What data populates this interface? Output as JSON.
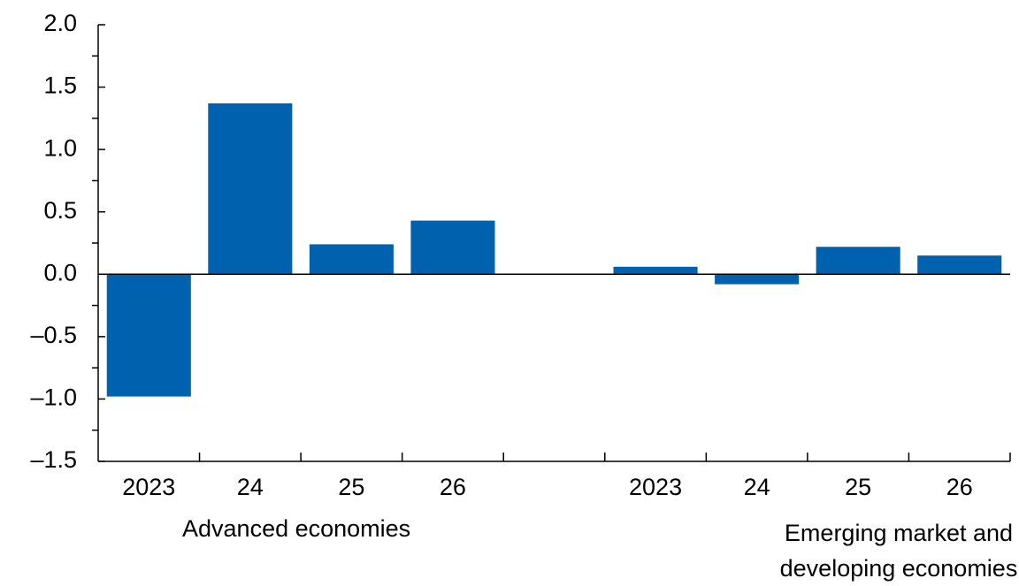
{
  "chart_data": {
    "type": "bar",
    "categories": [
      "2023",
      "24",
      "25",
      "26",
      null,
      "2023",
      "24",
      "25",
      "26"
    ],
    "values": [
      -0.98,
      1.37,
      0.24,
      0.43,
      null,
      0.06,
      -0.08,
      0.22,
      0.15
    ],
    "color": "#0061ae",
    "groups": [
      [
        "Advanced economies"
      ],
      [
        "Emerging market and",
        "developing economies"
      ]
    ],
    "ylim": [
      -1.5,
      2.0
    ],
    "yticks": [
      {
        "value": -1.5,
        "label": "–1.5"
      },
      {
        "value": -1.0,
        "label": "–1.0"
      },
      {
        "value": -0.5,
        "label": "–0.5"
      },
      {
        "value": 0.0,
        "label": "0.0"
      },
      {
        "value": 0.5,
        "label": "0.5"
      },
      {
        "value": 1.0,
        "label": "1.0"
      },
      {
        "value": 1.5,
        "label": "1.5"
      },
      {
        "value": 2.0,
        "label": "2.0"
      }
    ],
    "yminorticks": [
      -1.25,
      -0.75,
      -0.25,
      0.25,
      0.75,
      1.25,
      1.75
    ]
  }
}
